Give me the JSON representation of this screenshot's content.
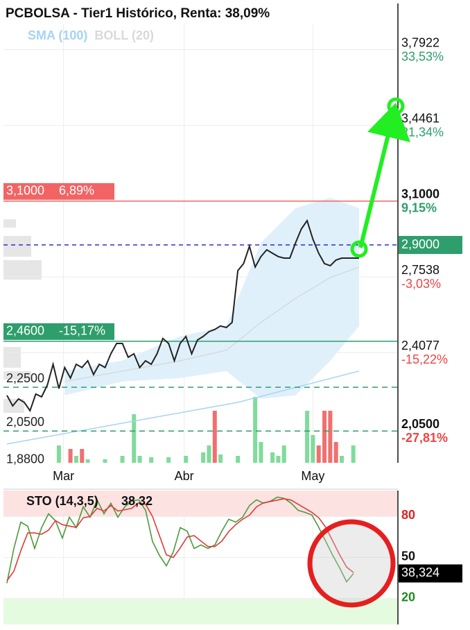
{
  "chart_data": [
    {
      "type": "line",
      "title": "PCBOLSA - Tier1 Histórico, Renta: 38,09%",
      "ylim": [
        1.905,
        4.003
      ],
      "yticks": [
        {
          "value": 3.7922,
          "label": "3,7922"
        },
        {
          "value": 3.4461,
          "label": "3,4461"
        },
        {
          "value": 3.1,
          "label": "3,1000"
        },
        {
          "value": 2.7538,
          "label": "2,7538"
        },
        {
          "value": 2.4077,
          "label": "2,4077"
        },
        {
          "value": 2.05,
          "label": "2,0500"
        }
      ],
      "ytick_changes": [
        "33,53%",
        "21,34%",
        "9,15%",
        "-3,03%",
        "-15,22%",
        "-27,81%"
      ],
      "xticks": [
        {
          "value": 9.8,
          "label": "Mar"
        },
        {
          "value": 30.7,
          "label": "Abr"
        },
        {
          "value": 53,
          "label": "May"
        }
      ],
      "grid": true,
      "series": [
        {
          "color": "#222222",
          "values": [
            2.213,
            2.165,
            2.197,
            2.181,
            2.143,
            2.219,
            2.206,
            2.26,
            2.355,
            2.244,
            2.34,
            2.292,
            2.355,
            2.34,
            2.371,
            2.308,
            2.355,
            2.34,
            2.403,
            2.45,
            2.45,
            2.387,
            2.403,
            2.34,
            2.371,
            2.355,
            2.403,
            2.473,
            2.45,
            2.371,
            2.45,
            2.482,
            2.403,
            2.466,
            2.482,
            2.504,
            2.514,
            2.53,
            2.523,
            2.546,
            2.783,
            2.815,
            2.894,
            2.799,
            2.847,
            2.878,
            2.862,
            2.847,
            2.84,
            2.84,
            2.91,
            2.973,
            3.011,
            2.926,
            2.862,
            2.815,
            2.805,
            2.831,
            2.84,
            2.84,
            2.84,
            2.84
          ]
        },
        {
          "name": "SMA (100)",
          "color": "#a6d3f5",
          "x": [
            0,
            20,
            40,
            61
          ],
          "values": [
            1.991,
            2.086,
            2.181,
            2.324
          ]
        },
        {
          "name": "BOLL (20)",
          "color": "#d9d9d9",
          "band_color": "#dff0fb",
          "x": [
            10,
            20,
            30,
            38,
            44,
            50,
            56,
            61
          ],
          "upper": [
            2.324,
            2.372,
            2.482,
            2.53,
            2.91,
            3.068,
            3.116,
            3.068
          ],
          "lower": [
            2.213,
            2.276,
            2.292,
            2.324,
            2.197,
            2.213,
            2.371,
            2.53
          ],
          "values": [
            2.276,
            2.324,
            2.371,
            2.419,
            2.546,
            2.656,
            2.751,
            2.799
          ]
        }
      ],
      "volume": {
        "x": [
          9,
          11,
          12,
          13,
          14,
          17,
          20,
          22,
          23,
          25,
          28,
          31,
          34,
          35,
          36,
          37,
          40,
          43,
          44,
          46,
          47,
          48,
          52,
          53,
          54,
          55,
          56,
          57,
          58,
          60
        ],
        "values": [
          25,
          20,
          10,
          20,
          5,
          5,
          10,
          70,
          10,
          8,
          8,
          10,
          15,
          25,
          75,
          12,
          10,
          95,
          30,
          15,
          10,
          25,
          75,
          40,
          25,
          75,
          75,
          30,
          10,
          25
        ],
        "colors": [
          "#7fdc9a",
          "#f07070",
          "#7fdc9a",
          "#f07070",
          "#7fdc9a",
          "#7fdc9a",
          "#7fdc9a",
          "#7fdc9a",
          "#7fdc9a",
          "#7fdc9a",
          "#7fdc9a",
          "#7fdc9a",
          "#7fdc9a",
          "#7fdc9a",
          "#f07070",
          "#7fdc9a",
          "#7fdc9a",
          "#7fdc9a",
          "#7fdc9a",
          "#7fdc9a",
          "#7fdc9a",
          "#7fdc9a",
          "#7fdc9a",
          "#7fdc9a",
          "#f07070",
          "#f07070",
          "#f07070",
          "#f07070",
          "#7fdc9a",
          "#7fdc9a"
        ]
      },
      "levels": [
        {
          "value": 3.1,
          "label": "3,1000",
          "change": "6,89%",
          "color": "#f26464",
          "style": "solid"
        },
        {
          "value": 2.46,
          "label": "2,4600",
          "change": "-15,17%",
          "color": "#2e9e6c",
          "style": "solid"
        },
        {
          "value": 2.25,
          "label": "2,2500",
          "color": "#2e9e6c",
          "style": "dashed"
        },
        {
          "value": 2.05,
          "label": "2,0500",
          "color": "#2e9e6c",
          "style": "dashed"
        },
        {
          "value": 1.88,
          "label": "1,8800",
          "color": "#2e9e6c",
          "style": "none"
        }
      ],
      "last_price": {
        "value": 2.9,
        "label": "2,9000",
        "color": "#2e9e6c",
        "line_color": "#2b2bd6"
      }
    },
    {
      "type": "line",
      "title": "STO (14,3,5)",
      "ylim": [
        1,
        99
      ],
      "yticks": [
        20,
        50,
        80
      ],
      "ytick_colors": [
        "#1e8a1e",
        "#111111",
        "#e02020"
      ],
      "zones": [
        {
          "from": 80,
          "to": 99,
          "color": "#fde2e2"
        },
        {
          "from": 1,
          "to": 20,
          "color": "#e4fbe0"
        }
      ],
      "series": [
        {
          "color": "#4a9a3a",
          "values": [
            31.2,
            56.6,
            75.9,
            72.9,
            56.6,
            71.9,
            82,
            76.9,
            64.2,
            79.5,
            71.9,
            87.1,
            79.5,
            92.2,
            82,
            89.7,
            79.5,
            87.1,
            91.2,
            92.2,
            84.6,
            61.7,
            51.5,
            43.9,
            54.1,
            71.9,
            69.3,
            56.6,
            59.2,
            56.6,
            59.2,
            69.3,
            78,
            75.9,
            79.5,
            88.1,
            92.2,
            89.7,
            91.2,
            94.2,
            93.2,
            89.7,
            84.6,
            83,
            81,
            71.9,
            61.7,
            51.5,
            42.4,
            32.2,
            38.324
          ]
        },
        {
          "color": "#e03a3a",
          "values": [
            33,
            40,
            55,
            68,
            68,
            67,
            70,
            77,
            74,
            73,
            72,
            79,
            80,
            86,
            84,
            88,
            84,
            85,
            86,
            90,
            89,
            80,
            66,
            52,
            50,
            57,
            65,
            66,
            62,
            58,
            58,
            62,
            69,
            74,
            78,
            81,
            87,
            90,
            91,
            92,
            93,
            92,
            89,
            86,
            83,
            79,
            72,
            62,
            52,
            43,
            39
          ]
        }
      ],
      "last": {
        "value": 38.324,
        "label": "38,324",
        "short_label": "38,32"
      }
    }
  ]
}
